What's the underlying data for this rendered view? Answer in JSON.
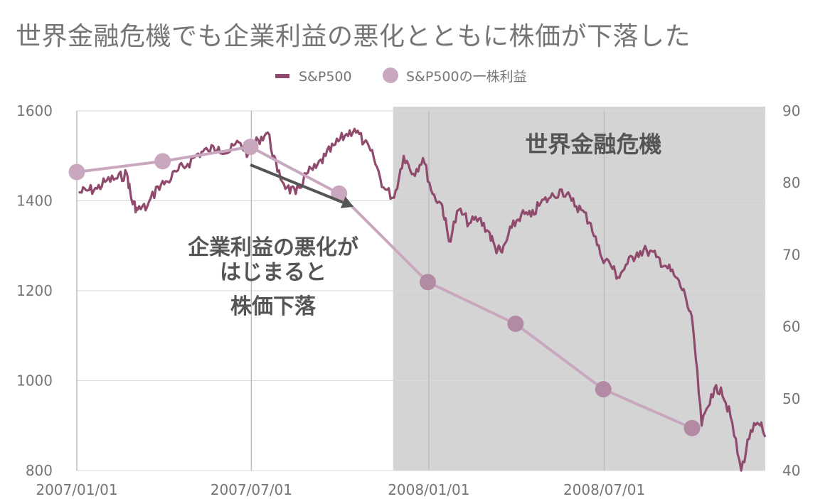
{
  "chart_data": {
    "type": "line",
    "title": "世界金融危機でも企業利益の悪化とともに株価が下落した",
    "legend": {
      "placement": "top-center",
      "items": [
        {
          "name": "S&P500",
          "color": "#8f4a6e",
          "marker": "line"
        },
        {
          "name": "S&P500の一株利益",
          "color": "#c9a8bf",
          "marker": "circle"
        }
      ]
    },
    "x_tick_labels": [
      "2007/01/01",
      "2007/07/01",
      "2008/01/01",
      "2008/07/01"
    ],
    "x_range": [
      "2007/01/01",
      "2008/12/15"
    ],
    "y_left": {
      "ticks": [
        800,
        1000,
        1200,
        1400,
        1600
      ],
      "range": [
        800,
        1600
      ]
    },
    "y_right": {
      "ticks": [
        40,
        50,
        60,
        70,
        80,
        90
      ],
      "range": [
        40,
        90
      ]
    },
    "grid": true,
    "shaded_region": {
      "label": "世界金融危機",
      "start": "2007/11/25",
      "end": "2008/12/15",
      "color": "#d4d4d4"
    },
    "annotation": {
      "lines": [
        "企業利益の悪化が",
        "はじまると",
        "株価下落"
      ],
      "arrow_from": [
        "2007/06/30",
        1480
      ],
      "arrow_to": [
        "2007/10/15",
        1387
      ]
    },
    "series": [
      {
        "name": "S&P500",
        "axis": "left",
        "color": "#8f4a6e",
        "x": [
          "2007/01/03",
          "2007/01/12",
          "2007/01/22",
          "2007/02/01",
          "2007/02/12",
          "2007/02/22",
          "2007/02/27",
          "2007/03/05",
          "2007/03/15",
          "2007/03/26",
          "2007/04/05",
          "2007/04/16",
          "2007/04/26",
          "2007/05/07",
          "2007/05/17",
          "2007/05/28",
          "2007/06/07",
          "2007/06/18",
          "2007/06/28",
          "2007/07/08",
          "2007/07/18",
          "2007/07/28",
          "2007/08/07",
          "2007/08/16",
          "2007/08/27",
          "2007/09/06",
          "2007/09/16",
          "2007/09/26",
          "2007/10/06",
          "2007/10/16",
          "2007/10/26",
          "2007/11/05",
          "2007/11/15",
          "2007/11/26",
          "2007/12/06",
          "2007/12/16",
          "2007/12/26",
          "2008/01/05",
          "2008/01/15",
          "2008/01/22",
          "2008/02/01",
          "2008/02/12",
          "2008/02/22",
          "2008/03/03",
          "2008/03/10",
          "2008/03/17",
          "2008/03/27",
          "2008/04/06",
          "2008/04/16",
          "2008/04/26",
          "2008/05/06",
          "2008/05/18",
          "2008/05/28",
          "2008/06/07",
          "2008/06/17",
          "2008/06/27",
          "2008/07/07",
          "2008/07/15",
          "2008/07/25",
          "2008/08/04",
          "2008/08/14",
          "2008/08/24",
          "2008/09/03",
          "2008/09/13",
          "2008/09/23",
          "2008/10/01",
          "2008/10/10",
          "2008/10/20",
          "2008/10/30",
          "2008/11/09",
          "2008/11/20",
          "2008/11/30",
          "2008/12/10",
          "2008/12/15"
        ],
        "y": [
          1418,
          1423,
          1427,
          1445,
          1450,
          1460,
          1400,
          1380,
          1387,
          1432,
          1443,
          1468,
          1482,
          1505,
          1512,
          1520,
          1507,
          1530,
          1505,
          1536,
          1552,
          1465,
          1430,
          1415,
          1460,
          1473,
          1500,
          1525,
          1545,
          1560,
          1530,
          1495,
          1430,
          1407,
          1500,
          1460,
          1495,
          1415,
          1390,
          1310,
          1380,
          1350,
          1360,
          1332,
          1295,
          1285,
          1340,
          1370,
          1365,
          1395,
          1407,
          1425,
          1400,
          1380,
          1350,
          1280,
          1260,
          1230,
          1260,
          1285,
          1290,
          1275,
          1255,
          1230,
          1190,
          1120,
          900,
          970,
          985,
          920,
          800,
          890,
          900,
          875
        ]
      },
      {
        "name": "S&P500の一株利益",
        "axis": "right",
        "color": "#c9a8bf",
        "x": [
          "2007/01/01",
          "2007/03/31",
          "2007/06/30",
          "2007/09/30",
          "2007/12/31",
          "2008/03/31",
          "2008/06/30",
          "2008/09/30"
        ],
        "y": [
          81.5,
          83.0,
          85.0,
          78.5,
          66.2,
          60.4,
          51.3,
          45.9
        ]
      }
    ]
  }
}
